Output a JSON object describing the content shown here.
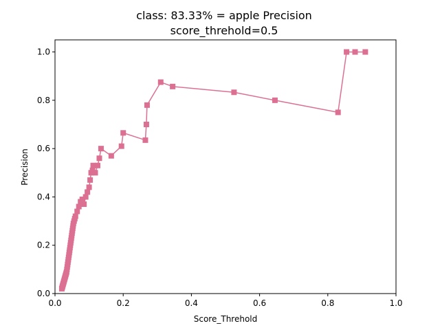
{
  "chart_data": {
    "type": "line",
    "title": "class: 83.33% = apple Precision",
    "subtitle": "score_threhold=0.5",
    "xlabel": "Score_Threhold",
    "ylabel": "Precision",
    "xlim": [
      0.0,
      1.0
    ],
    "ylim": [
      0.0,
      1.05
    ],
    "x_ticks": [
      "0.0",
      "0.2",
      "0.4",
      "0.6",
      "0.8",
      "1.0"
    ],
    "y_ticks": [
      "0.0",
      "0.2",
      "0.4",
      "0.6",
      "0.8",
      "1.0"
    ],
    "grid": false,
    "series_color": "#db7093",
    "marker": "square",
    "series": [
      {
        "x": [
          0.02,
          0.021,
          0.022,
          0.023,
          0.024,
          0.025,
          0.026,
          0.027,
          0.028,
          0.029,
          0.03,
          0.031,
          0.032,
          0.033,
          0.034,
          0.035,
          0.036,
          0.037,
          0.038,
          0.039,
          0.04,
          0.041,
          0.042,
          0.043,
          0.044,
          0.045,
          0.046,
          0.047,
          0.048,
          0.049,
          0.05,
          0.051,
          0.052,
          0.053,
          0.054,
          0.056,
          0.058,
          0.06,
          0.065,
          0.07,
          0.075,
          0.08,
          0.085,
          0.09,
          0.095,
          0.1,
          0.103,
          0.106,
          0.11,
          0.112,
          0.118,
          0.125,
          0.13,
          0.135,
          0.165,
          0.195,
          0.2,
          0.265,
          0.268,
          0.27,
          0.31,
          0.345,
          0.525,
          0.645,
          0.83,
          0.855,
          0.88,
          0.91
        ],
        "values": [
          0.02,
          0.025,
          0.03,
          0.035,
          0.04,
          0.045,
          0.05,
          0.055,
          0.06,
          0.065,
          0.07,
          0.075,
          0.08,
          0.085,
          0.09,
          0.1,
          0.11,
          0.12,
          0.13,
          0.14,
          0.15,
          0.16,
          0.17,
          0.18,
          0.19,
          0.2,
          0.21,
          0.22,
          0.23,
          0.24,
          0.25,
          0.26,
          0.27,
          0.28,
          0.29,
          0.3,
          0.31,
          0.32,
          0.34,
          0.36,
          0.38,
          0.39,
          0.37,
          0.4,
          0.42,
          0.44,
          0.47,
          0.5,
          0.51,
          0.53,
          0.5,
          0.53,
          0.56,
          0.6,
          0.57,
          0.61,
          0.665,
          0.635,
          0.7,
          0.78,
          0.875,
          0.857,
          0.833,
          0.8,
          0.75,
          1.0,
          1.0,
          1.0
        ]
      }
    ]
  }
}
